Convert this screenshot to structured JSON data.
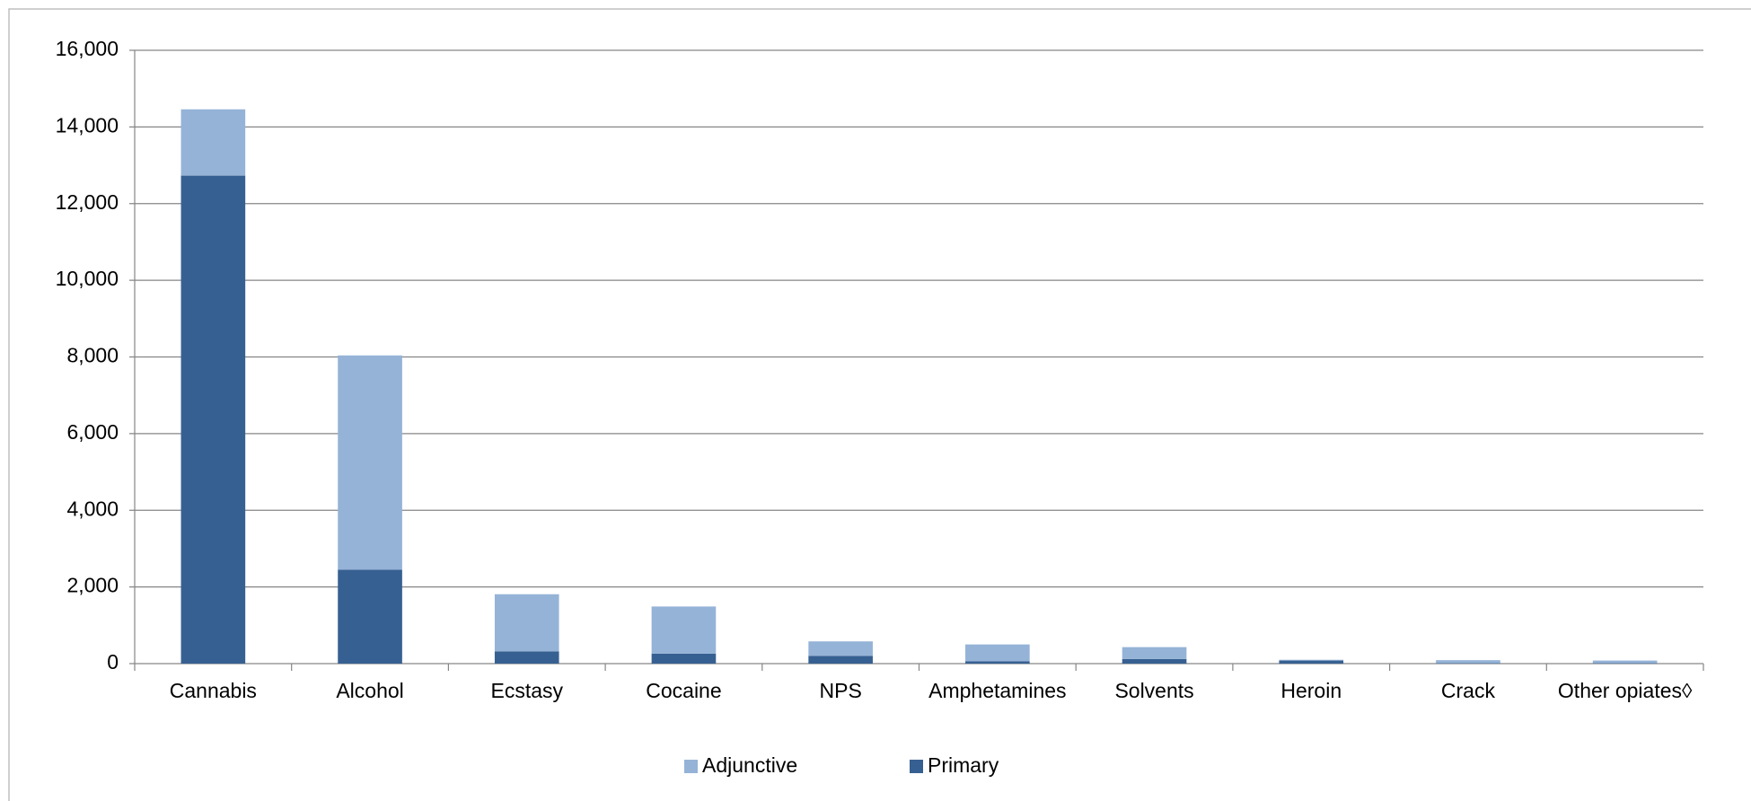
{
  "chart_data": {
    "type": "stacked_bar",
    "categories": [
      "Cannabis",
      "Alcohol",
      "Ecstasy",
      "Cocaine",
      "NPS",
      "Amphetamines",
      "Solvents",
      "Heroin",
      "Crack",
      "Other opiates◊"
    ],
    "series": [
      {
        "name": "Adjunctive",
        "color": "#95b3d7",
        "values": [
          1730,
          5590,
          1490,
          1230,
          380,
          440,
          310,
          20,
          80,
          70
        ]
      },
      {
        "name": "Primary",
        "color": "#376092",
        "values": [
          12730,
          2450,
          320,
          260,
          200,
          60,
          120,
          80,
          10,
          10
        ]
      }
    ],
    "ylim": [
      0,
      16000
    ],
    "yticks": [
      {
        "value": 0,
        "label": "0"
      },
      {
        "value": 2000,
        "label": "2,000"
      },
      {
        "value": 4000,
        "label": "4,000"
      },
      {
        "value": 6000,
        "label": "6,000"
      },
      {
        "value": 8000,
        "label": "8,000"
      },
      {
        "value": 10000,
        "label": "10,000"
      },
      {
        "value": 12000,
        "label": "12,000"
      },
      {
        "value": 14000,
        "label": "14,000"
      },
      {
        "value": 16000,
        "label": "16,000"
      }
    ],
    "grid": true,
    "legend": "bottom"
  }
}
